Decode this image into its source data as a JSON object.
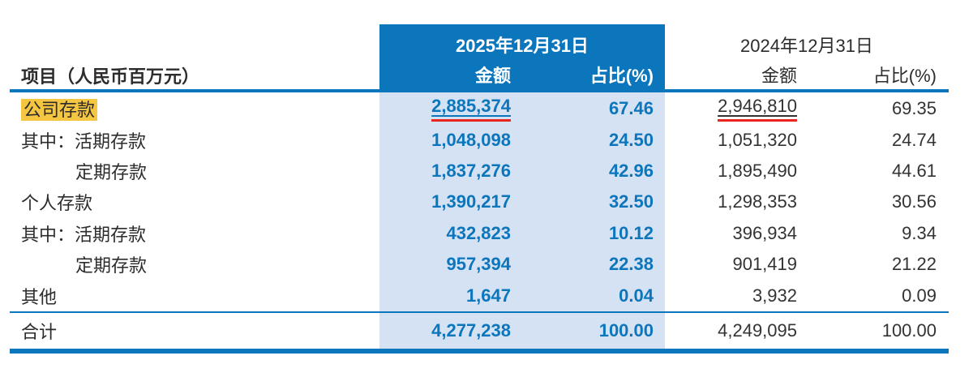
{
  "table": {
    "label_header": "项目（人民币百万元）",
    "period_2025": {
      "date": "2025年12月31日",
      "amount_header": "金额",
      "pct_header": "占比(%)"
    },
    "period_2024": {
      "date": "2024年12月31日",
      "amount_header": "金额",
      "pct_header": "占比(%)"
    },
    "rows": [
      {
        "label": "公司存款",
        "indent": 0,
        "highlight": true,
        "underline": true,
        "a2025": "2,885,374",
        "p2025": "67.46",
        "a2024": "2,946,810",
        "p2024": "69.35"
      },
      {
        "label": "其中：活期存款",
        "indent": 0,
        "highlight": false,
        "underline": false,
        "a2025": "1,048,098",
        "p2025": "24.50",
        "a2024": "1,051,320",
        "p2024": "24.74"
      },
      {
        "label": "定期存款",
        "indent": 1,
        "highlight": false,
        "underline": false,
        "a2025": "1,837,276",
        "p2025": "42.96",
        "a2024": "1,895,490",
        "p2024": "44.61"
      },
      {
        "label": "个人存款",
        "indent": 0,
        "highlight": false,
        "underline": false,
        "a2025": "1,390,217",
        "p2025": "32.50",
        "a2024": "1,298,353",
        "p2024": "30.56"
      },
      {
        "label": "其中：活期存款",
        "indent": 0,
        "highlight": false,
        "underline": false,
        "a2025": "432,823",
        "p2025": "10.12",
        "a2024": "396,934",
        "p2024": "9.34"
      },
      {
        "label": "定期存款",
        "indent": 1,
        "highlight": false,
        "underline": false,
        "a2025": "957,394",
        "p2025": "22.38",
        "a2024": "901,419",
        "p2024": "21.22"
      },
      {
        "label": "其他",
        "indent": 0,
        "highlight": false,
        "underline": false,
        "a2025": "1,647",
        "p2025": "0.04",
        "a2024": "3,932",
        "p2024": "0.09"
      }
    ],
    "total": {
      "label": "合计",
      "a2025": "4,277,238",
      "p2025": "100.00",
      "a2024": "4,249,095",
      "p2024": "100.00"
    }
  },
  "colors": {
    "blue": "#0c76bc",
    "band": "#d5e2f3",
    "highlight": "#f5c642",
    "red": "#e8251e",
    "text": "#2e2b2c",
    "num2024": "#333333"
  }
}
